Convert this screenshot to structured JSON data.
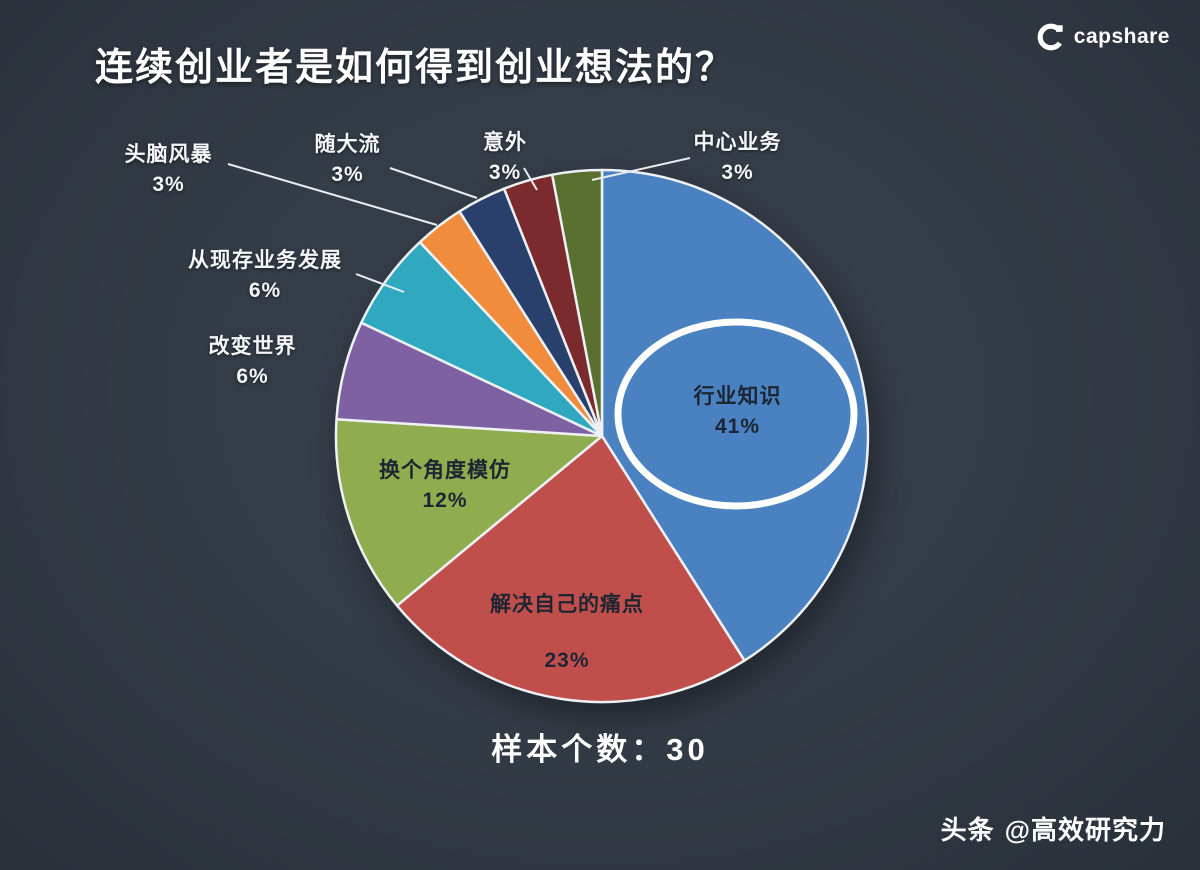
{
  "header": {
    "title": "连续创业者是如何得到创业想法的？"
  },
  "brand": {
    "name": "capshare"
  },
  "chart_data": {
    "type": "pie",
    "title": "连续创业者是如何得到创业想法的？",
    "sample_size": 30,
    "unit": "percent",
    "direction": "clockwise",
    "start_angle": "12-oclock",
    "slices": [
      {
        "label": "行业知识",
        "value": 41,
        "pct_label": "41%",
        "color": "#4a81c0",
        "label_placement": "inside-ellipse"
      },
      {
        "label": "解决自己的痛点",
        "value": 23,
        "pct_label": "23%",
        "color": "#c04f4c",
        "label_placement": "inside"
      },
      {
        "label": "换个角度模仿",
        "value": 12,
        "pct_label": "12%",
        "color": "#8fad4f",
        "label_placement": "inside"
      },
      {
        "label": "改变世界",
        "value": 6,
        "pct_label": "6%",
        "color": "#7d61a3",
        "label_placement": "outside"
      },
      {
        "label": "从现存业务发展",
        "value": 6,
        "pct_label": "6%",
        "color": "#2fa8c0",
        "label_placement": "outside"
      },
      {
        "label": "头脑风暴",
        "value": 3,
        "pct_label": "3%",
        "color": "#f08c3c",
        "label_placement": "outside"
      },
      {
        "label": "随大流",
        "value": 3,
        "pct_label": "3%",
        "color": "#28406b",
        "label_placement": "outside"
      },
      {
        "label": "意外",
        "value": 3,
        "pct_label": "3%",
        "color": "#7b2a2e",
        "label_placement": "outside"
      },
      {
        "label": "中心业务",
        "value": 3,
        "pct_label": "3%",
        "color": "#5a7030",
        "label_placement": "outside"
      }
    ]
  },
  "footer": {
    "sample_text": "样本个数：30",
    "credit_source": "头条",
    "credit_handle": "@高效研究力"
  }
}
